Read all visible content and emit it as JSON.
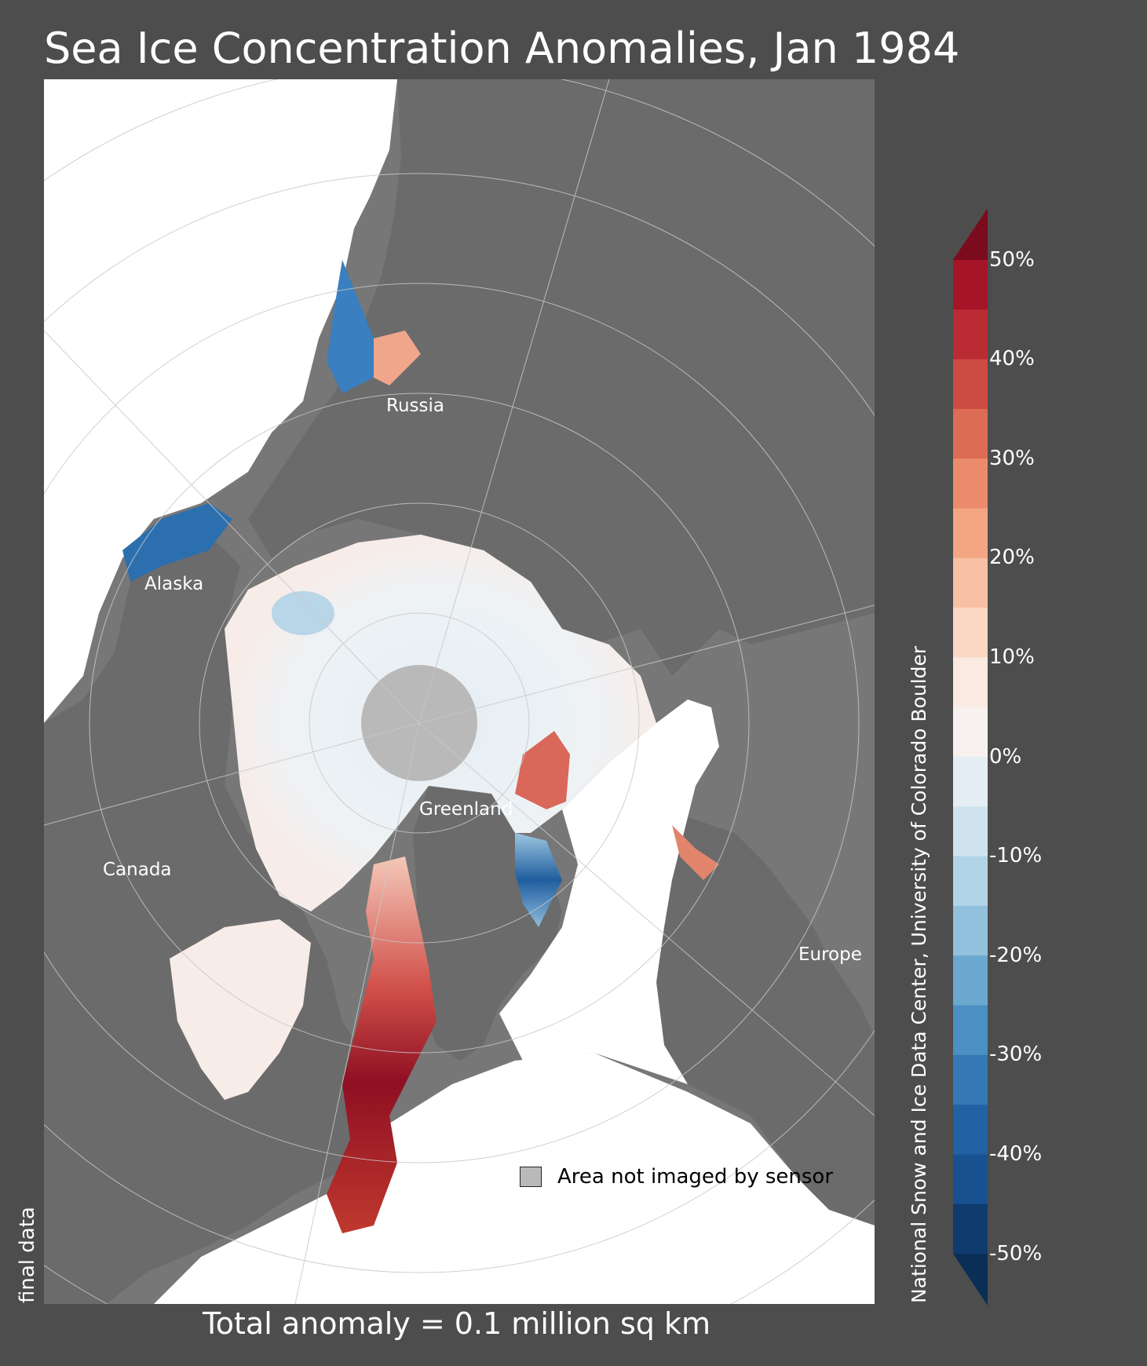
{
  "title": "Sea Ice Concentration Anomalies, Jan 1984",
  "labels": {
    "russia": "Russia",
    "alaska": "Alaska",
    "canada": "Canada",
    "greenland": "Greenland",
    "europe": "Europe"
  },
  "legend": {
    "label": "Area not imaged by sensor",
    "swatch_color": "#b9b9b9"
  },
  "status": "final data",
  "total_anomaly": "Total anomaly = 0.1 million sq km",
  "credit": "National Snow and Ice Data Center, University of Colorado Boulder",
  "colorbar": {
    "ticks": [
      "50%",
      "40%",
      "30%",
      "20%",
      "10%",
      "0%",
      "-10%",
      "-20%",
      "-30%",
      "-40%",
      "-50%"
    ],
    "colors_top_to_bottom": [
      "#a51527",
      "#bb2b34",
      "#cc4c44",
      "#dd6c55",
      "#eb8b6c",
      "#f4a582",
      "#f8c0a4",
      "#fbd8c4",
      "#faeae1",
      "#f7f2ef",
      "#e4eef4",
      "#cfe3ef",
      "#b2d4e7",
      "#91c1dc",
      "#6aa8cf",
      "#4a90c2",
      "#3478b5",
      "#2262a4",
      "#185190",
      "#0f3b6f"
    ],
    "over_color": "#7b0c1d",
    "under_color": "#0b2e57"
  },
  "map_colors": {
    "land": "#6b6b6b",
    "ocean": "#ffffff",
    "pole_hole": "#b9b9b9",
    "panel_background": "#777777"
  }
}
